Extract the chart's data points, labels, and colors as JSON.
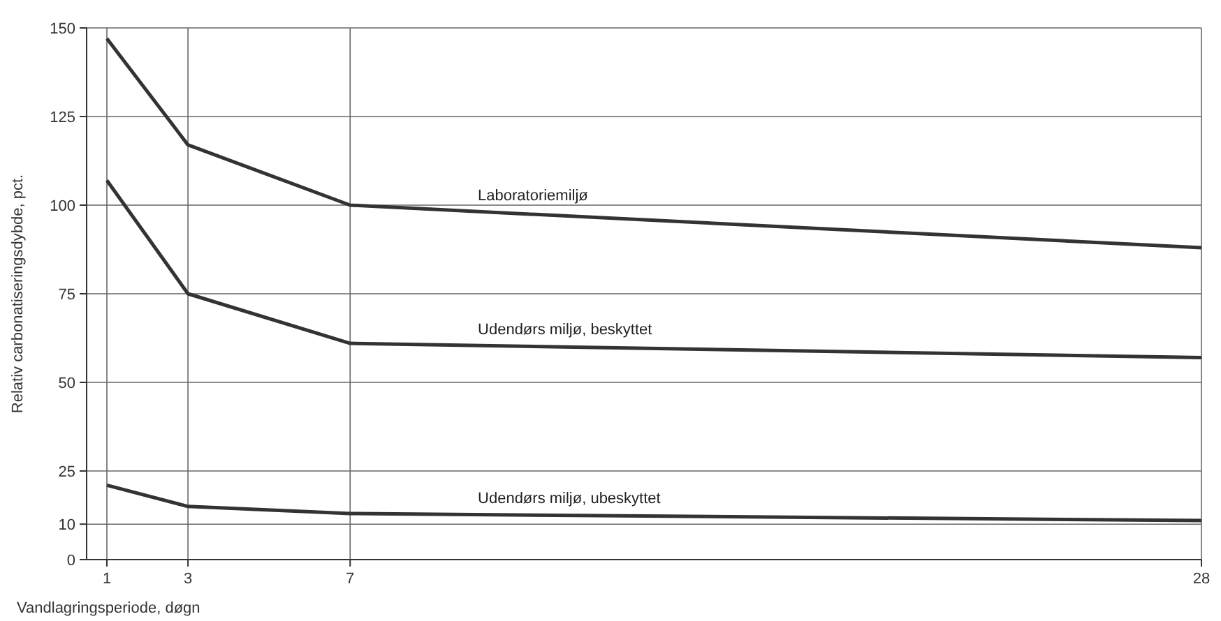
{
  "chart_data": {
    "type": "line",
    "xlabel": "Vandlagringsperiode, døgn",
    "ylabel": "Relativ carbonatiseringsdybde, pct.",
    "x": [
      1,
      3,
      7,
      28
    ],
    "series": [
      {
        "name": "Laboratoriemiljø",
        "color": "#333333",
        "values": [
          147,
          117,
          100,
          88
        ]
      },
      {
        "name": "Udendørs miljø, beskyttet",
        "color": "#333333",
        "values": [
          107,
          75,
          61,
          57
        ]
      },
      {
        "name": "Udendørs miljø, ubeskyttet",
        "color": "#333333",
        "values": [
          21,
          15,
          13,
          11
        ]
      }
    ],
    "xlim": [
      0.5,
      28
    ],
    "xticks": [
      1,
      3,
      7,
      28
    ],
    "ylim": [
      0,
      150
    ],
    "yticks": [
      0,
      10,
      25,
      50,
      75,
      100,
      125,
      150
    ],
    "grid": true,
    "marker": "none",
    "line_style": "solid"
  }
}
